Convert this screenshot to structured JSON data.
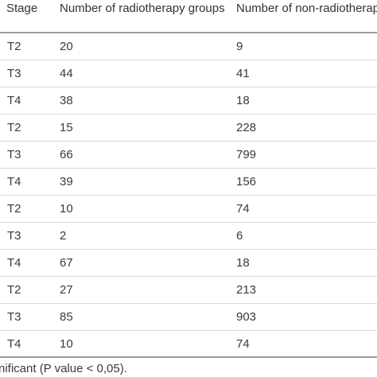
{
  "table": {
    "headers": {
      "stage": "Stage",
      "radiotherapy": "Number of radiotherapy groups",
      "non_radiotherapy": "Number of non-radiotherapy groups"
    },
    "rows": [
      {
        "stage": "T2",
        "radiotherapy": "20",
        "non_radiotherapy": "9"
      },
      {
        "stage": "T3",
        "radiotherapy": "44",
        "non_radiotherapy": "41"
      },
      {
        "stage": "T4",
        "radiotherapy": "38",
        "non_radiotherapy": "18"
      },
      {
        "stage": "T2",
        "radiotherapy": "15",
        "non_radiotherapy": "228"
      },
      {
        "stage": "T3",
        "radiotherapy": "66",
        "non_radiotherapy": "799"
      },
      {
        "stage": "T4",
        "radiotherapy": "39",
        "non_radiotherapy": "156"
      },
      {
        "stage": "T2",
        "radiotherapy": "10",
        "non_radiotherapy": "74"
      },
      {
        "stage": "T3",
        "radiotherapy": "2",
        "non_radiotherapy": "6"
      },
      {
        "stage": "T4",
        "radiotherapy": "67",
        "non_radiotherapy": "18"
      },
      {
        "stage": "T2",
        "radiotherapy": "27",
        "non_radiotherapy": "213"
      },
      {
        "stage": "T3",
        "radiotherapy": "85",
        "non_radiotherapy": "903"
      },
      {
        "stage": "T4",
        "radiotherapy": "10",
        "non_radiotherapy": "74"
      }
    ]
  },
  "footnote": "nificant (P value < 0,05)."
}
